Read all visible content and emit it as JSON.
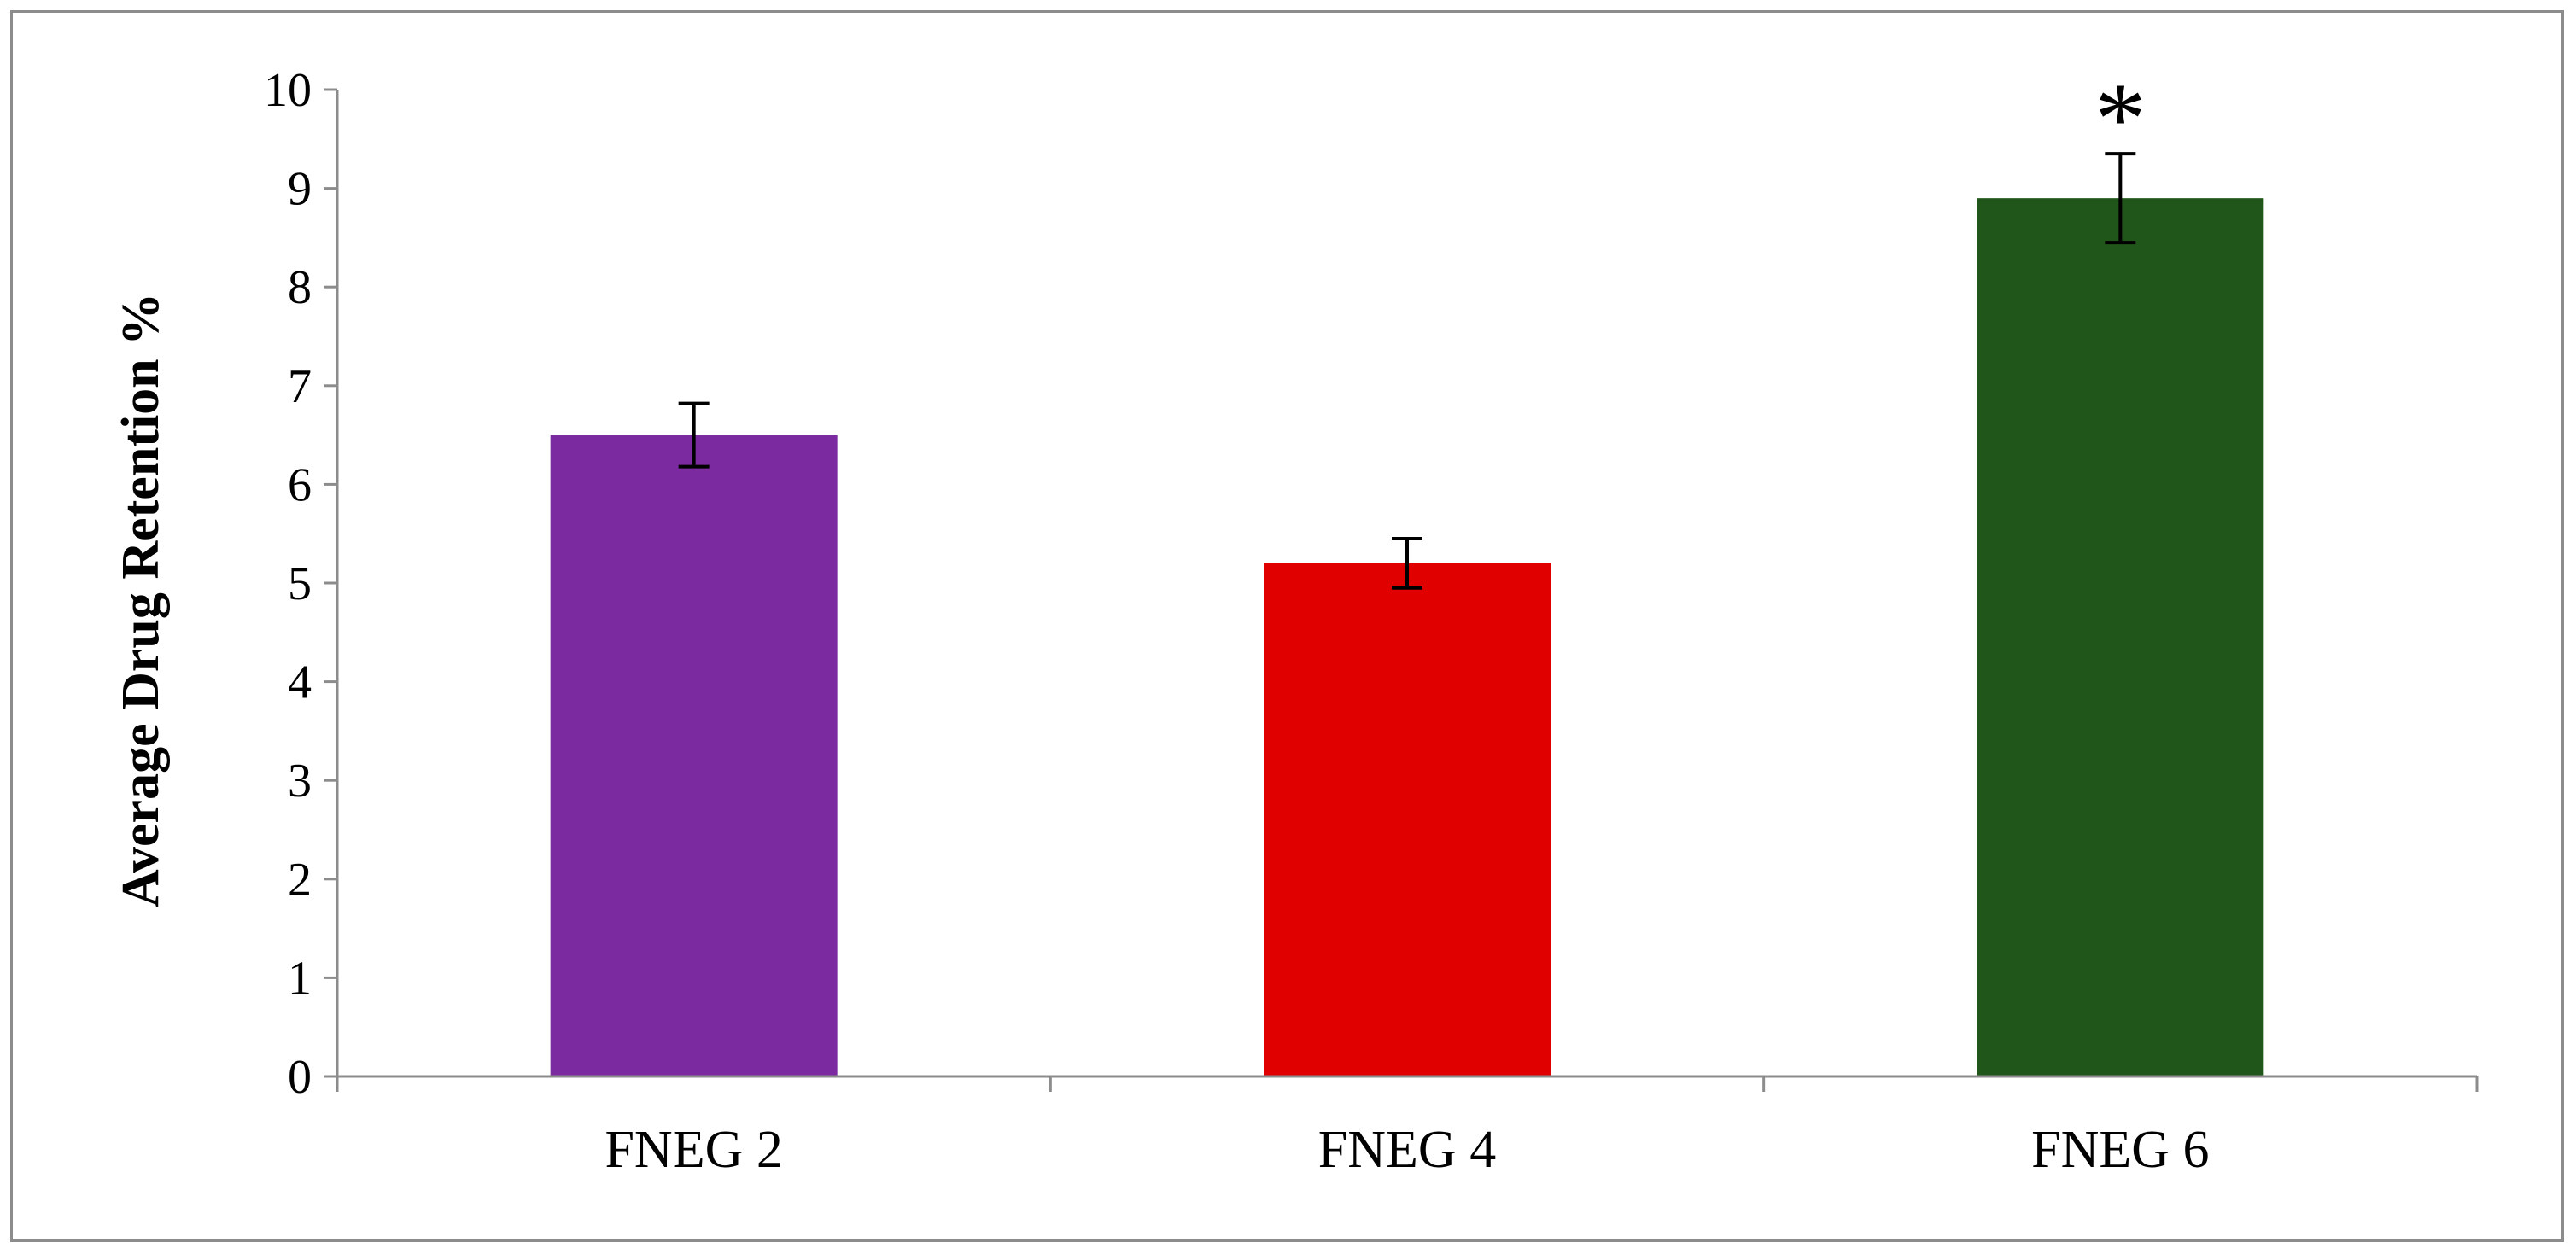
{
  "chart_data": {
    "type": "bar",
    "title": "",
    "xlabel": "",
    "ylabel": "Average Drug Retention %",
    "ylim": [
      0,
      10
    ],
    "yticks": [
      0,
      1,
      2,
      3,
      4,
      5,
      6,
      7,
      8,
      9,
      10
    ],
    "grid": false,
    "legend": "none",
    "categories": [
      "FNEG 2",
      "FNEG 4",
      "FNEG 6"
    ],
    "values": [
      6.5,
      5.2,
      8.9
    ],
    "error": [
      0.32,
      0.25,
      0.45
    ],
    "colors": [
      "#7B2A9F",
      "#E00000",
      "#21561A"
    ],
    "annotations": [
      {
        "category": "FNEG 6",
        "text": "*"
      }
    ]
  }
}
